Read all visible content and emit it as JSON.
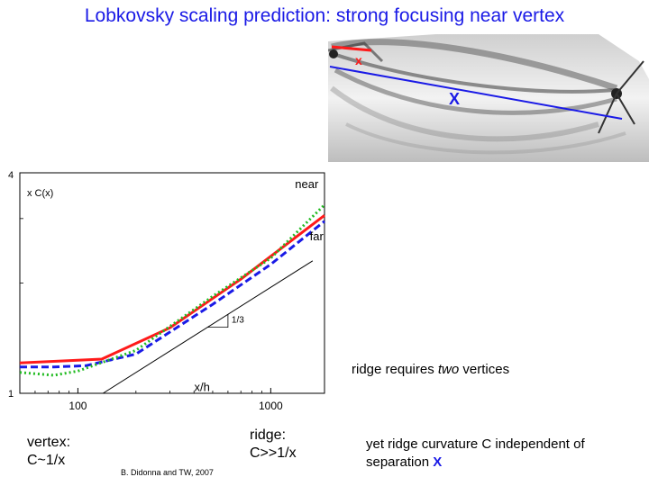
{
  "slide": {
    "title": "Lobkovsky scaling prediction: strong focusing near vertex",
    "photo_labels": {
      "small_x": "x",
      "large_x": "X"
    },
    "notes": {
      "ridge_two_prefix": "ridge requires ",
      "ridge_two_emph": "two",
      "ridge_two_suffix": " vertices",
      "vertex_line1": "vertex:",
      "vertex_line2": "C~1/x",
      "ridge_line1": "ridge:",
      "ridge_line2": "C>>1/x",
      "yet_line1": "yet ridge curvature C independent of",
      "yet_line2": "separation ",
      "yet_x": "X"
    },
    "credit": "B. Didonna  and TW, 2007"
  },
  "chart_data": {
    "type": "line",
    "xscale": "log",
    "yscale": "log",
    "xlim": [
      50,
      1900
    ],
    "ylim": [
      1,
      4
    ],
    "xticks": [
      100,
      1000
    ],
    "xtick_labels": [
      "100",
      "1000"
    ],
    "yticks": [
      1,
      4
    ],
    "ytick_labels": [
      "1",
      "4"
    ],
    "ylabel": "x C(x)",
    "annotations": [
      "near",
      "far",
      "1/3",
      "x/h"
    ],
    "series": [
      {
        "color": "#ff1a1a",
        "style": "solid",
        "x": [
          50,
          133,
          300,
          700,
          1900
        ],
        "y": [
          1.21,
          1.24,
          1.51,
          2.05,
          3.06
        ]
      },
      {
        "color": "#1a1ae6",
        "style": "dashed",
        "x": [
          50,
          75,
          110,
          200,
          500,
          1000,
          1900
        ],
        "y": [
          1.18,
          1.18,
          1.19,
          1.28,
          1.75,
          2.25,
          2.95
        ]
      },
      {
        "color": "#22bb22",
        "style": "dotted",
        "x": [
          50,
          75,
          100,
          200,
          500,
          1000,
          1900
        ],
        "y": [
          1.14,
          1.12,
          1.15,
          1.31,
          1.84,
          2.34,
          3.27
        ]
      }
    ],
    "reference_line": {
      "slope": "1/3",
      "x": [
        135,
        1650
      ],
      "y": [
        1.0,
        2.3
      ]
    }
  }
}
